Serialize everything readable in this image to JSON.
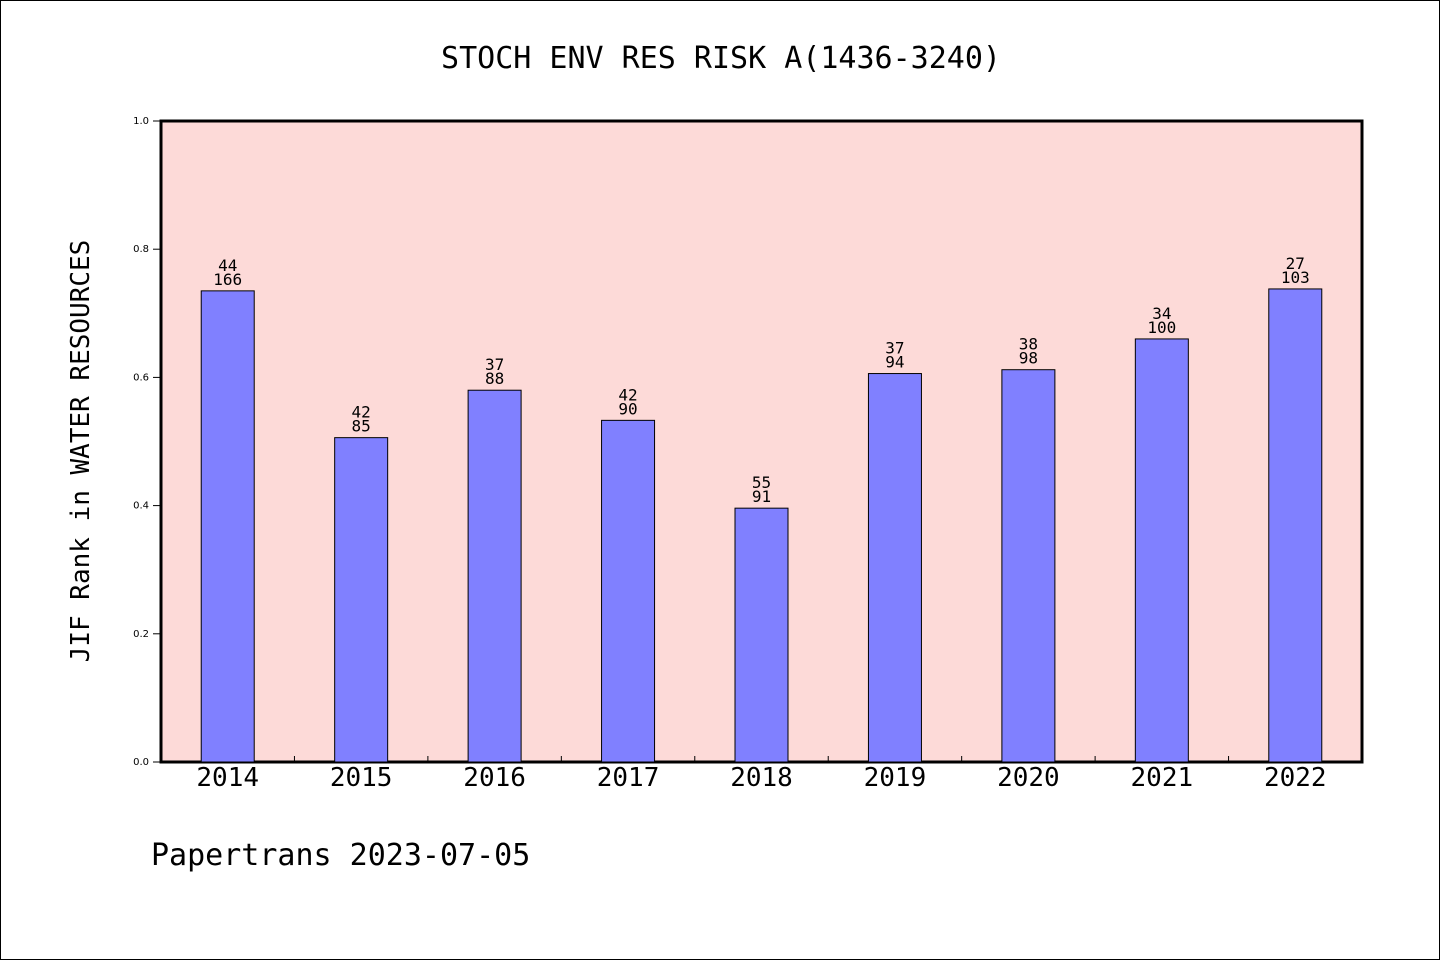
{
  "chart_data": {
    "type": "bar",
    "title": "STOCH ENV RES RISK A(1436-3240)",
    "xlabel": "",
    "ylabel": "JIF Rank in WATER RESOURCES",
    "ylim": [
      0,
      1.0
    ],
    "yticks": [
      "0.0",
      "0.2",
      "0.4",
      "0.6",
      "0.8",
      "1.0"
    ],
    "categories": [
      "2014",
      "2015",
      "2016",
      "2017",
      "2018",
      "2019",
      "2020",
      "2021",
      "2022"
    ],
    "values": [
      0.735,
      0.506,
      0.58,
      0.533,
      0.396,
      0.606,
      0.612,
      0.66,
      0.738
    ],
    "labels_top": [
      "44",
      "42",
      "37",
      "42",
      "55",
      "37",
      "38",
      "34",
      "27"
    ],
    "labels_bottom": [
      "166",
      "85",
      "88",
      "90",
      "91",
      "94",
      "98",
      "100",
      "103"
    ],
    "grid": false,
    "colors": {
      "plot_background": "#fddad8",
      "bar_fill": "#8080ff",
      "bar_stroke": "#000000"
    }
  },
  "footer": "Papertrans 2023-07-05"
}
